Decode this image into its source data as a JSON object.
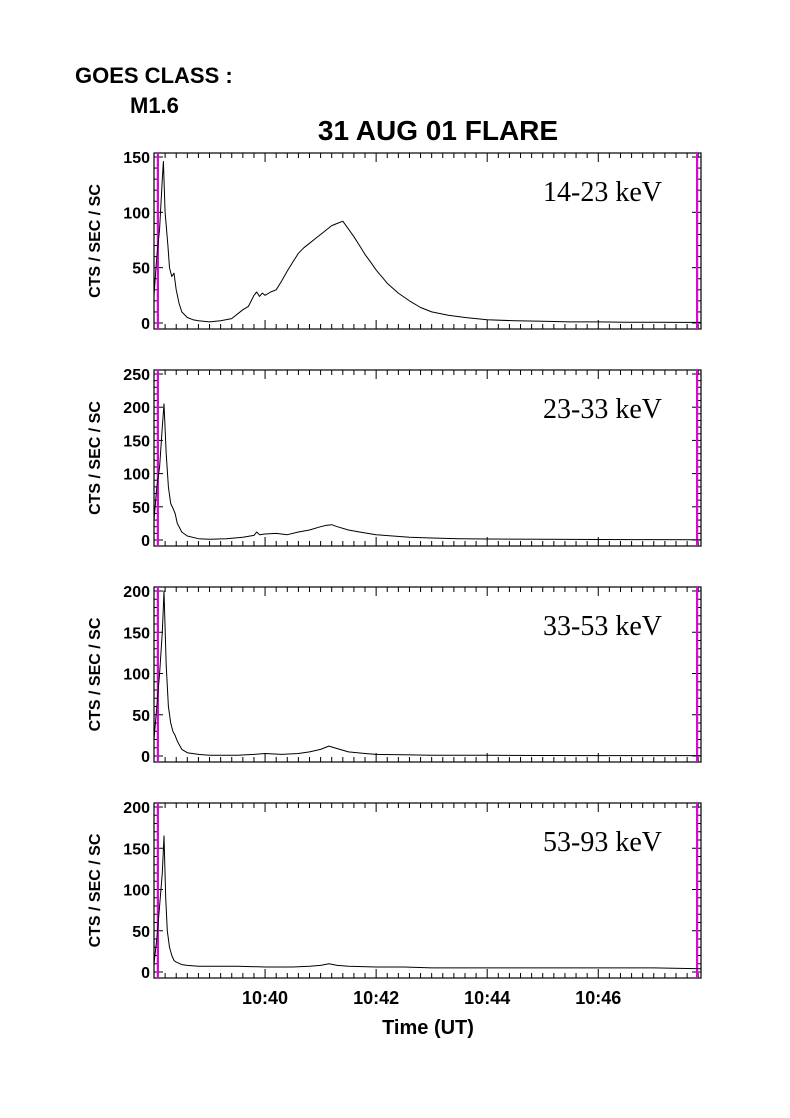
{
  "header": {
    "goes_label": "GOES CLASS :",
    "goes_class": "M1.6",
    "title": "31 AUG 01 FLARE"
  },
  "chart_data": {
    "type": "line",
    "title": "31 AUG 01 FLARE",
    "xlabel": "Time (UT)",
    "x_tick_labels": [
      "10:40",
      "10:42",
      "10:44",
      "10:46"
    ],
    "x_tick_minutes": [
      40,
      42,
      44,
      46
    ],
    "xlim_minutes": [
      38.0,
      47.85
    ],
    "marker_color": "#e000e0",
    "marker_minutes": [
      38.07,
      47.78
    ],
    "panels": [
      {
        "band": "14-23 keV",
        "ylabel": "CTS / SEC / SC",
        "ylim": [
          0,
          150
        ],
        "yticks": [
          0,
          50,
          100,
          150
        ],
        "series": {
          "x": [
            38.0,
            38.05,
            38.1,
            38.15,
            38.17,
            38.2,
            38.25,
            38.28,
            38.32,
            38.36,
            38.4,
            38.45,
            38.5,
            38.6,
            38.7,
            38.8,
            39.0,
            39.2,
            39.4,
            39.6,
            39.7,
            39.8,
            39.85,
            39.9,
            39.95,
            40.0,
            40.1,
            40.2,
            40.3,
            40.4,
            40.5,
            40.6,
            40.7,
            40.8,
            40.9,
            41.0,
            41.1,
            41.2,
            41.3,
            41.4,
            41.5,
            41.6,
            41.7,
            41.8,
            41.9,
            42.0,
            42.2,
            42.4,
            42.6,
            42.8,
            43.0,
            43.3,
            43.6,
            44.0,
            44.5,
            45.0,
            45.5,
            46.0,
            46.5,
            47.0,
            47.5,
            47.85
          ],
          "y": [
            25,
            60,
            85,
            130,
            146,
            100,
            70,
            50,
            42,
            45,
            30,
            18,
            10,
            5,
            3,
            2,
            1,
            2,
            4,
            12,
            15,
            25,
            28,
            24,
            27,
            25,
            28,
            30,
            38,
            47,
            55,
            63,
            68,
            72,
            76,
            80,
            84,
            88,
            90,
            92,
            85,
            78,
            70,
            62,
            55,
            48,
            36,
            27,
            20,
            14,
            10,
            7,
            5,
            3,
            2,
            1.5,
            1,
            1,
            0.7,
            0.6,
            0.5,
            0.5
          ]
        }
      },
      {
        "band": "23-33 keV",
        "ylabel": "CTS / SEC / SC",
        "ylim": [
          0,
          250
        ],
        "yticks": [
          0,
          50,
          100,
          150,
          200,
          250
        ],
        "series": {
          "x": [
            38.0,
            38.05,
            38.1,
            38.15,
            38.18,
            38.22,
            38.26,
            38.3,
            38.34,
            38.38,
            38.42,
            38.5,
            38.6,
            38.8,
            39.0,
            39.3,
            39.6,
            39.8,
            39.85,
            39.9,
            40.0,
            40.2,
            40.4,
            40.6,
            40.8,
            41.0,
            41.1,
            41.2,
            41.3,
            41.5,
            41.7,
            42.0,
            42.3,
            42.6,
            43.0,
            43.5,
            44.0,
            45.0,
            46.0,
            47.0,
            47.85
          ],
          "y": [
            30,
            80,
            110,
            170,
            205,
            130,
            80,
            55,
            48,
            40,
            25,
            12,
            6,
            2,
            1,
            2,
            4,
            7,
            12,
            8,
            9,
            10,
            8,
            12,
            15,
            20,
            22,
            23,
            20,
            15,
            12,
            8,
            6,
            4,
            3,
            2,
            1.5,
            1,
            0.8,
            0.6,
            0.5
          ]
        }
      },
      {
        "band": "33-53 keV",
        "ylabel": "CTS / SEC / SC",
        "ylim": [
          0,
          200
        ],
        "yticks": [
          0,
          50,
          100,
          150,
          200
        ],
        "series": {
          "x": [
            38.0,
            38.05,
            38.1,
            38.15,
            38.18,
            38.22,
            38.26,
            38.3,
            38.34,
            38.38,
            38.42,
            38.5,
            38.6,
            38.8,
            39.0,
            39.5,
            39.8,
            40.0,
            40.3,
            40.6,
            40.8,
            41.0,
            41.15,
            41.3,
            41.5,
            41.8,
            42.0,
            42.5,
            43.0,
            44.0,
            45.0,
            46.0,
            47.0,
            47.85
          ],
          "y": [
            20,
            60,
            100,
            150,
            200,
            110,
            60,
            40,
            30,
            25,
            18,
            8,
            4,
            2,
            1,
            1,
            2,
            3,
            2,
            3,
            5,
            8,
            12,
            9,
            5,
            3,
            2,
            1.5,
            1,
            0.8,
            0.6,
            0.5,
            0.5,
            0.5
          ]
        }
      },
      {
        "band": "53-93 keV",
        "ylabel": "CTS / SEC / SC",
        "ylim": [
          0,
          200
        ],
        "yticks": [
          0,
          50,
          100,
          150,
          200
        ],
        "series": {
          "x": [
            38.0,
            38.05,
            38.1,
            38.15,
            38.18,
            38.21,
            38.24,
            38.28,
            38.32,
            38.36,
            38.4,
            38.5,
            38.6,
            38.8,
            39.0,
            39.5,
            40.0,
            40.5,
            40.8,
            41.0,
            41.15,
            41.3,
            41.5,
            42.0,
            42.5,
            43.0,
            44.0,
            45.0,
            46.0,
            47.0,
            47.85
          ],
          "y": [
            10,
            40,
            80,
            120,
            165,
            90,
            50,
            30,
            20,
            14,
            12,
            9,
            8,
            7,
            7,
            7,
            6,
            6,
            7,
            8,
            10,
            8,
            7,
            6,
            6,
            5,
            5,
            5,
            5,
            5,
            4
          ]
        }
      }
    ]
  }
}
